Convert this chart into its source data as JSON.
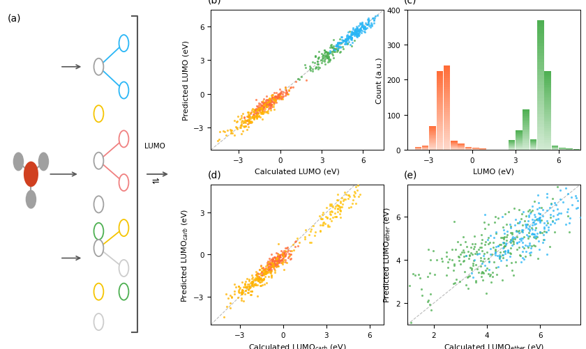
{
  "fig_width": 8.4,
  "fig_height": 5.02,
  "panel_b": {
    "xlabel": "Calculated LUMO (eV)",
    "ylabel": "Predicted LUMO (eV)",
    "xlim": [
      -5,
      7.5
    ],
    "ylim": [
      -5,
      7.5
    ],
    "xticks": [
      -3,
      0,
      3,
      6
    ],
    "yticks": [
      -3,
      0,
      3,
      6
    ],
    "clusters": [
      {
        "color": "#FF6B35",
        "x_mean": -0.8,
        "y_mean": -0.8,
        "x_std": 0.8,
        "y_std": 0.7,
        "n": 200,
        "corr": 0.92
      },
      {
        "color": "#FFB300",
        "x_mean": -2.0,
        "y_mean": -2.0,
        "x_std": 1.0,
        "y_std": 0.9,
        "n": 150,
        "corr": 0.9
      },
      {
        "color": "#4CAF50",
        "x_mean": 3.5,
        "y_mean": 3.5,
        "x_std": 0.9,
        "y_std": 0.85,
        "n": 120,
        "corr": 0.9
      },
      {
        "color": "#29B6F6",
        "x_mean": 5.5,
        "y_mean": 5.5,
        "x_std": 0.8,
        "y_std": 0.75,
        "n": 200,
        "corr": 0.95
      }
    ]
  },
  "panel_c": {
    "xlabel": "LUMO (eV)",
    "ylabel": "Count (a.u.)",
    "xlim": [
      -4.5,
      7.5
    ],
    "ylim": [
      0,
      400
    ],
    "xticks": [
      -3,
      0,
      3,
      6
    ],
    "yticks": [
      0,
      100,
      200,
      300,
      400
    ],
    "orange_bins": [
      -4.0,
      -3.5,
      -3.0,
      -2.5,
      -2.0,
      -1.5,
      -1.0,
      -0.5,
      0.0,
      0.5
    ],
    "orange_counts": [
      8,
      12,
      68,
      225,
      240,
      25,
      18,
      8,
      6,
      3
    ],
    "green_bins": [
      2.5,
      3.0,
      3.5,
      4.0,
      4.5,
      5.0,
      5.5,
      6.0,
      6.5,
      7.0
    ],
    "green_counts": [
      28,
      55,
      115,
      30,
      370,
      225,
      12,
      6,
      3,
      1
    ]
  },
  "panel_d": {
    "xlabel": "Calculated LUMO$_{carb}$ (eV)",
    "ylabel": "Predicted LUMO$_{carb}$ (eV)",
    "xlim": [
      -5,
      7.0
    ],
    "ylim": [
      -5,
      5.0
    ],
    "xticks": [
      -3,
      0,
      3,
      6
    ],
    "yticks": [
      -3,
      0,
      3
    ],
    "clusters": [
      {
        "color": "#FF6B35",
        "x_mean": -0.5,
        "y_mean": -0.5,
        "x_std": 0.6,
        "y_std": 0.55,
        "n": 180,
        "corr": 0.9
      },
      {
        "color": "#FFB300",
        "x_mean": -1.8,
        "y_mean": -1.8,
        "x_std": 1.0,
        "y_std": 0.9,
        "n": 200,
        "corr": 0.9
      },
      {
        "color": "#FFC107",
        "x_mean": 3.5,
        "y_mean": 3.0,
        "x_std": 1.0,
        "y_std": 0.9,
        "n": 100,
        "corr": 0.85
      }
    ]
  },
  "panel_e": {
    "xlabel": "Calculated LUMO$_{ether}$ (eV)",
    "ylabel": "Predicted LUMO$_{ether}$ (eV)",
    "xlim": [
      1,
      7.5
    ],
    "ylim": [
      1,
      7.5
    ],
    "xticks": [
      2,
      4,
      6
    ],
    "yticks": [
      2,
      4,
      6
    ],
    "clusters": [
      {
        "color": "#4CAF50",
        "x_mean": 4.2,
        "y_mean": 4.5,
        "x_std": 1.4,
        "y_std": 1.2,
        "n": 250,
        "corr": 0.75
      },
      {
        "color": "#29B6F6",
        "x_mean": 5.5,
        "y_mean": 5.3,
        "x_std": 1.0,
        "y_std": 0.9,
        "n": 200,
        "corr": 0.8
      }
    ]
  },
  "label_fontsize": 8,
  "tick_fontsize": 7.5,
  "panel_label_fontsize": 10,
  "scatter_size": 5,
  "scatter_alpha": 0.75
}
